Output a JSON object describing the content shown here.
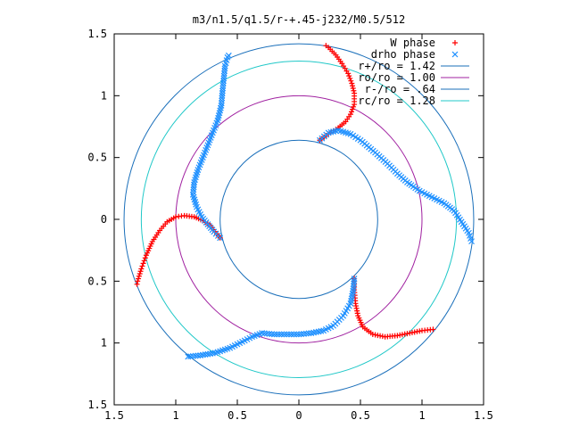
{
  "chart_data": {
    "type": "scatter",
    "title": "m3/n1.5/q1.5/r-+.45-j232/M0.5/512",
    "xlabel": "",
    "ylabel": "",
    "xlim": [
      -1.5,
      1.5
    ],
    "ylim": [
      -1.5,
      1.5
    ],
    "x_ticks": [
      -1.5,
      -1,
      -0.5,
      0,
      0.5,
      1,
      1.5
    ],
    "y_ticks": [
      -1.5,
      -1,
      -0.5,
      0,
      0.5,
      1,
      1.5
    ],
    "x_tick_labels": [
      "1.5",
      "1",
      "0.5",
      "0",
      "0.5",
      "1",
      "1.5"
    ],
    "y_tick_labels": [
      "1.5",
      "1",
      "0.5",
      "0",
      "0.5",
      "1",
      "1.5"
    ],
    "grid": false,
    "legend_position": "top-right",
    "circles": [
      {
        "name": "r+/ro = 1.42",
        "radius": 1.42,
        "color": "#1a6fba"
      },
      {
        "name": "ro/ro = 1.00",
        "radius": 1.0,
        "color": "#a020a0"
      },
      {
        "name": "r-/ro = .64",
        "radius": 0.64,
        "color": "#1a6fba"
      },
      {
        "name": "rc/ro = 1.28",
        "radius": 1.28,
        "color": "#20c8c8"
      }
    ],
    "series": [
      {
        "name": "W phase",
        "marker": "+",
        "color": "#ff0000",
        "points": [
          [
            0.17,
            0.64
          ],
          [
            0.24,
            0.69
          ],
          [
            0.32,
            0.74
          ],
          [
            0.38,
            0.79
          ],
          [
            0.42,
            0.85
          ],
          [
            0.45,
            0.93
          ],
          [
            0.45,
            1.02
          ],
          [
            0.43,
            1.1
          ],
          [
            0.4,
            1.18
          ],
          [
            0.35,
            1.26
          ],
          [
            0.3,
            1.33
          ],
          [
            0.24,
            1.39
          ],
          [
            0.2,
            1.42
          ],
          [
            -0.64,
            -0.15
          ],
          [
            -0.68,
            -0.1
          ],
          [
            -0.72,
            -0.05
          ],
          [
            -0.78,
            -0.01
          ],
          [
            -0.85,
            0.02
          ],
          [
            -0.93,
            0.03
          ],
          [
            -1.0,
            0.02
          ],
          [
            -1.07,
            -0.02
          ],
          [
            -1.13,
            -0.09
          ],
          [
            -1.19,
            -0.18
          ],
          [
            -1.24,
            -0.29
          ],
          [
            -1.28,
            -0.4
          ],
          [
            -1.31,
            -0.5
          ],
          [
            -1.32,
            -0.55
          ],
          [
            0.45,
            -0.48
          ],
          [
            0.45,
            -0.57
          ],
          [
            0.46,
            -0.68
          ],
          [
            0.48,
            -0.78
          ],
          [
            0.52,
            -0.87
          ],
          [
            0.6,
            -0.93
          ],
          [
            0.7,
            -0.95
          ],
          [
            0.8,
            -0.94
          ],
          [
            0.9,
            -0.92
          ],
          [
            1.0,
            -0.9
          ],
          [
            1.09,
            -0.89
          ]
        ]
      },
      {
        "name": "drho phase",
        "marker": "x",
        "color": "#1e90ff",
        "points": [
          [
            0.17,
            0.64
          ],
          [
            0.24,
            0.7
          ],
          [
            0.32,
            0.72
          ],
          [
            0.42,
            0.69
          ],
          [
            0.5,
            0.64
          ],
          [
            0.62,
            0.54
          ],
          [
            0.72,
            0.45
          ],
          [
            0.8,
            0.37
          ],
          [
            0.88,
            0.3
          ],
          [
            0.98,
            0.23
          ],
          [
            1.08,
            0.18
          ],
          [
            1.18,
            0.13
          ],
          [
            1.26,
            0.07
          ],
          [
            1.32,
            -0.02
          ],
          [
            1.38,
            -0.11
          ],
          [
            1.41,
            -0.2
          ],
          [
            -0.64,
            -0.15
          ],
          [
            -0.69,
            -0.1
          ],
          [
            -0.74,
            -0.04
          ],
          [
            -0.79,
            0.02
          ],
          [
            -0.83,
            0.1
          ],
          [
            -0.86,
            0.2
          ],
          [
            -0.85,
            0.3
          ],
          [
            -0.82,
            0.4
          ],
          [
            -0.78,
            0.5
          ],
          [
            -0.74,
            0.6
          ],
          [
            -0.7,
            0.7
          ],
          [
            -0.66,
            0.8
          ],
          [
            -0.63,
            0.92
          ],
          [
            -0.62,
            1.04
          ],
          [
            -0.61,
            1.14
          ],
          [
            -0.6,
            1.24
          ],
          [
            -0.58,
            1.31
          ],
          [
            -0.56,
            1.34
          ],
          [
            0.45,
            -0.48
          ],
          [
            0.44,
            -0.58
          ],
          [
            0.42,
            -0.68
          ],
          [
            0.36,
            -0.78
          ],
          [
            0.28,
            -0.86
          ],
          [
            0.2,
            -0.9
          ],
          [
            0.1,
            -0.92
          ],
          [
            0.0,
            -0.93
          ],
          [
            -0.1,
            -0.93
          ],
          [
            -0.2,
            -0.93
          ],
          [
            -0.3,
            -0.92
          ],
          [
            -0.38,
            -0.95
          ],
          [
            -0.46,
            -0.99
          ],
          [
            -0.56,
            -1.04
          ],
          [
            -0.68,
            -1.08
          ],
          [
            -0.8,
            -1.1
          ],
          [
            -0.9,
            -1.11
          ]
        ]
      }
    ]
  }
}
